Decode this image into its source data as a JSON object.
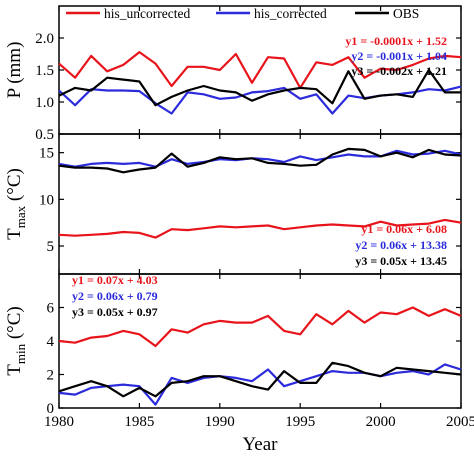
{
  "colors": {
    "his_uncorrected": "#e8141b",
    "his_corrected": "#2b2bdc",
    "obs": "#000000"
  },
  "legend": [
    "his_uncorrected",
    "his_corrected",
    "OBS"
  ],
  "xlabel": "Year",
  "x_ticks": [
    1980,
    1985,
    1990,
    1995,
    2000,
    2005
  ],
  "chart_data": [
    {
      "type": "line",
      "ylabel": "P (mm)",
      "ylim": [
        0.5,
        2.5
      ],
      "y_ticks": [
        "0.5",
        "1.0",
        "1.5",
        "2.0"
      ],
      "x": [
        1980,
        1981,
        1982,
        1983,
        1984,
        1985,
        1986,
        1987,
        1988,
        1989,
        1990,
        1991,
        1992,
        1993,
        1994,
        1995,
        1996,
        1997,
        1998,
        1999,
        2000,
        2001,
        2002,
        2003,
        2004,
        2005
      ],
      "series": [
        {
          "name": "his_uncorrected",
          "values": [
            1.6,
            1.38,
            1.72,
            1.48,
            1.58,
            1.78,
            1.6,
            1.25,
            1.55,
            1.55,
            1.5,
            1.75,
            1.3,
            1.7,
            1.68,
            1.22,
            1.62,
            1.58,
            1.7,
            1.38,
            1.52,
            1.5,
            1.58,
            1.68,
            1.72,
            1.7
          ]
        },
        {
          "name": "his_corrected",
          "values": [
            1.18,
            0.95,
            1.2,
            1.18,
            1.18,
            1.17,
            0.98,
            0.82,
            1.15,
            1.12,
            1.05,
            1.07,
            1.15,
            1.17,
            1.22,
            1.05,
            1.12,
            0.82,
            1.1,
            1.06,
            1.1,
            1.12,
            1.15,
            1.2,
            1.18,
            1.24
          ]
        },
        {
          "name": "OBS",
          "values": [
            1.1,
            1.22,
            1.18,
            1.38,
            1.35,
            1.32,
            0.95,
            1.08,
            1.18,
            1.25,
            1.18,
            1.15,
            1.02,
            1.12,
            1.18,
            1.22,
            1.2,
            0.98,
            1.48,
            1.05,
            1.1,
            1.12,
            1.08,
            1.5,
            1.15,
            1.15
          ]
        }
      ],
      "equations": [
        {
          "series": "his_uncorrected",
          "text": "y1 = -0.0001x + 1.52"
        },
        {
          "series": "his_corrected",
          "text": "y2 = -0.001x + 1.04"
        },
        {
          "series": "OBS",
          "text": "y3 = -0.002x + 1.21"
        }
      ]
    },
    {
      "type": "line",
      "ylabel_main": "T",
      "ylabel_sub": "max",
      "ylabel_unit": " (°C)",
      "ylim": [
        2,
        17
      ],
      "y_ticks": [
        "5",
        "10",
        "15"
      ],
      "x": [
        1980,
        1981,
        1982,
        1983,
        1984,
        1985,
        1986,
        1987,
        1988,
        1989,
        1990,
        1991,
        1992,
        1993,
        1994,
        1995,
        1996,
        1997,
        1998,
        1999,
        2000,
        2001,
        2002,
        2003,
        2004,
        2005
      ],
      "series": [
        {
          "name": "his_uncorrected",
          "values": [
            6.2,
            6.1,
            6.2,
            6.3,
            6.5,
            6.4,
            5.9,
            6.8,
            6.7,
            6.9,
            7.1,
            7.0,
            7.1,
            7.2,
            6.8,
            7.0,
            7.2,
            7.3,
            7.2,
            7.1,
            7.6,
            7.2,
            7.3,
            7.4,
            7.8,
            7.5
          ]
        },
        {
          "name": "his_corrected",
          "values": [
            13.8,
            13.5,
            13.8,
            13.9,
            13.8,
            13.9,
            13.5,
            14.3,
            13.8,
            14.0,
            14.3,
            14.2,
            14.4,
            14.3,
            14.0,
            14.6,
            14.2,
            14.5,
            14.8,
            14.6,
            14.6,
            15.2,
            14.8,
            14.9,
            15.2,
            14.8
          ]
        },
        {
          "name": "OBS",
          "values": [
            13.6,
            13.4,
            13.4,
            13.3,
            12.9,
            13.2,
            13.4,
            14.9,
            13.5,
            13.9,
            14.5,
            14.3,
            14.4,
            13.9,
            13.8,
            13.6,
            13.7,
            14.8,
            15.4,
            15.3,
            14.6,
            15.0,
            14.5,
            15.3,
            14.8,
            14.7
          ]
        }
      ],
      "equations": [
        {
          "series": "his_uncorrected",
          "text": "y1 = 0.06x + 6.08"
        },
        {
          "series": "his_corrected",
          "text": "y2 = 0.06x + 13.38"
        },
        {
          "series": "OBS",
          "text": "y3 = 0.05x + 13.45"
        }
      ]
    },
    {
      "type": "line",
      "ylabel_main": "T",
      "ylabel_sub": "min",
      "ylabel_unit": " (°C)",
      "ylim": [
        0,
        8
      ],
      "y_ticks": [
        "0",
        "2",
        "4",
        "6"
      ],
      "x": [
        1980,
        1981,
        1982,
        1983,
        1984,
        1985,
        1986,
        1987,
        1988,
        1989,
        1990,
        1991,
        1992,
        1993,
        1994,
        1995,
        1996,
        1997,
        1998,
        1999,
        2000,
        2001,
        2002,
        2003,
        2004,
        2005
      ],
      "series": [
        {
          "name": "his_uncorrected",
          "values": [
            4.0,
            3.9,
            4.2,
            4.3,
            4.6,
            4.4,
            3.7,
            4.7,
            4.5,
            5.0,
            5.2,
            5.1,
            5.1,
            5.5,
            4.6,
            4.4,
            5.6,
            5.0,
            5.8,
            5.1,
            5.7,
            5.6,
            6.0,
            5.5,
            5.9,
            5.5
          ]
        },
        {
          "name": "his_corrected",
          "values": [
            0.9,
            0.8,
            1.2,
            1.3,
            1.4,
            1.3,
            0.2,
            1.8,
            1.5,
            1.8,
            1.9,
            1.8,
            1.6,
            2.3,
            1.3,
            1.6,
            1.9,
            2.2,
            2.1,
            2.1,
            1.9,
            2.1,
            2.2,
            2.0,
            2.6,
            2.3
          ]
        },
        {
          "name": "OBS",
          "values": [
            1.0,
            1.3,
            1.6,
            1.3,
            0.7,
            1.2,
            0.7,
            1.5,
            1.6,
            1.9,
            1.9,
            1.6,
            1.3,
            1.1,
            2.2,
            1.5,
            1.5,
            2.7,
            2.5,
            2.1,
            1.9,
            2.4,
            2.3,
            2.2,
            2.1,
            2.0
          ]
        }
      ],
      "equations": [
        {
          "series": "his_uncorrected",
          "text": "y1 = 0.07x + 4.03"
        },
        {
          "series": "his_corrected",
          "text": "y2 = 0.06x + 0.79"
        },
        {
          "series": "OBS",
          "text": "y3 = 0.05x + 0.97"
        }
      ]
    }
  ]
}
